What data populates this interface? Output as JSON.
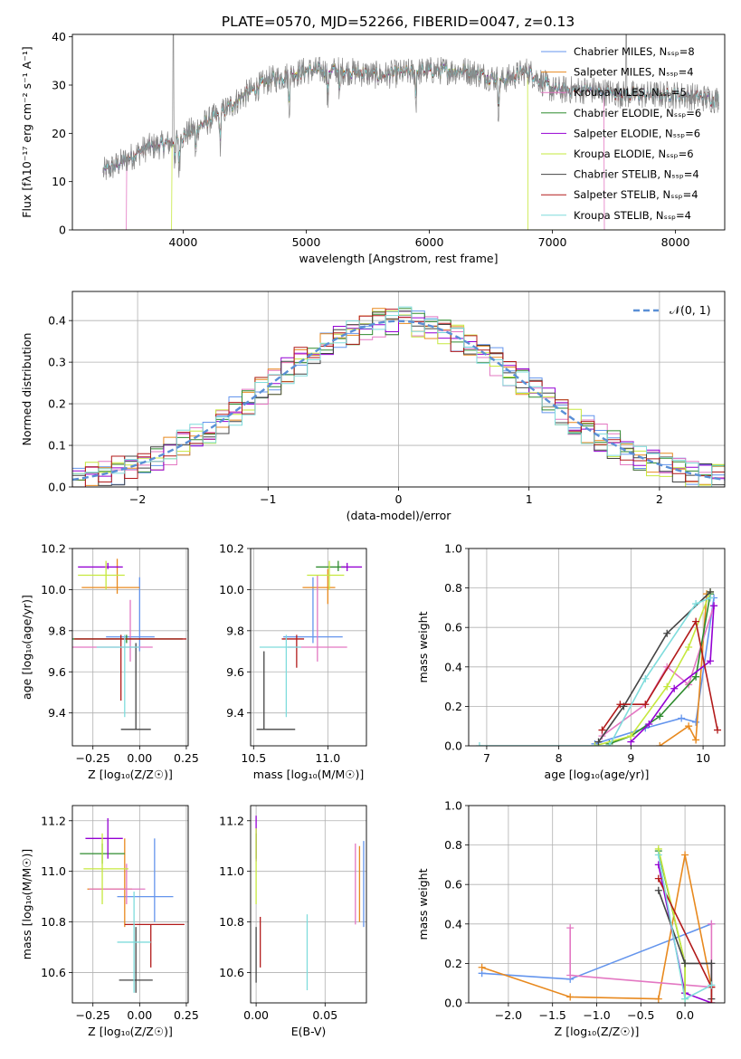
{
  "figure": {
    "title": "PLATE=0570, MJD=52266, FIBERID=0047, z=0.13"
  },
  "model_colors": [
    "#6495ed",
    "#e8891e",
    "#e377c2",
    "#2e8b2e",
    "#9400d3",
    "#c6e83e",
    "#444444",
    "#b21a1a",
    "#7fdcdc"
  ],
  "chart_data": [
    {
      "id": "spectrum",
      "type": "line",
      "xlabel": "wavelength [Angstrom, rest frame]",
      "ylabel": "Flux [fλ10⁻¹⁷ erg cm⁻² s⁻¹ A⁻¹]",
      "xlim": [
        3100,
        8400
      ],
      "ylim": [
        0,
        40.5
      ],
      "xticks": [
        4000,
        5000,
        6000,
        7000,
        8000
      ],
      "yticks": [
        0,
        10,
        20,
        30,
        40
      ],
      "legend_position": "top-right",
      "legend": [
        "Chabrier MILES, N_SSP=8",
        "Salpeter MILES, N_SSP=4",
        "Kroupa MILES, N_SSP=5",
        "Chabrier ELODIE, N_SSP=6",
        "Salpeter ELODIE, N_SSP=6",
        "Kroupa ELODIE, N_SSP=6",
        "Chabrier STELIB, N_SSP=4",
        "Salpeter STELIB, N_SSP=4",
        "Kroupa STELIB, N_SSP=4"
      ],
      "data_spectrum_anchors": {
        "x": [
          3350,
          3500,
          3700,
          3900,
          4100,
          4300,
          4500,
          4700,
          5000,
          5300,
          5600,
          6000,
          6300,
          6600,
          6800,
          7000,
          7300,
          7600,
          8000,
          8350
        ],
        "y": [
          12,
          14,
          17,
          18,
          21,
          24,
          28,
          31,
          33,
          33,
          32,
          33,
          33,
          31,
          33,
          29,
          29,
          28,
          28,
          27
        ]
      },
      "model_cutoffs": {
        "Kroupa MILES": [
          3540,
          7420
        ],
        "Kroupa ELODIE": [
          3910,
          6800
        ]
      }
    },
    {
      "id": "residuals",
      "type": "histogram",
      "xlabel": "(data-model)/error",
      "ylabel": "Normed distribution",
      "xlim": [
        -2.5,
        2.5
      ],
      "ylim": [
        0,
        0.47
      ],
      "xticks": [
        -2,
        -1,
        0,
        1,
        2
      ],
      "yticks": [
        0,
        0.1,
        0.2,
        0.3,
        0.4
      ],
      "bin_width": 0.1,
      "legend_position": "top-right",
      "reference_curve": {
        "name": "𝒩(0, 1)",
        "mean": 0,
        "sigma": 1
      }
    },
    {
      "id": "age_vs_Z",
      "type": "scatter",
      "xlabel": "Z [log₁₀(Z/Z☉)]",
      "ylabel": "age  [log₁₀(age/yr)]",
      "xlim": [
        -0.36,
        0.26
      ],
      "ylim": [
        9.24,
        10.2
      ],
      "xticks": [
        -0.25,
        0.0,
        0.25
      ],
      "yticks": [
        9.4,
        9.6,
        9.8,
        10.0,
        10.2
      ],
      "points": [
        {
          "x": 0.0,
          "y": 9.77,
          "xerr": [
            0.18,
            0.08
          ],
          "yerr": [
            0.07,
            0.29
          ]
        },
        {
          "x": -0.12,
          "y": 10.01,
          "xerr": [
            0.19,
            0.12
          ],
          "yerr": [
            0.03,
            0.14
          ]
        },
        {
          "x": -0.05,
          "y": 9.72,
          "xerr": [
            0.32,
            0.12
          ],
          "yerr": [
            0.07,
            0.23
          ]
        },
        {
          "x": -0.07,
          "y": 9.76,
          "xerr": [
            0.3,
            0.3
          ],
          "yerr": [
            0.02,
            0.02
          ]
        },
        {
          "x": -0.17,
          "y": 10.11,
          "xerr": [
            0.16,
            0.08
          ],
          "yerr": [
            0.01,
            0.02
          ]
        },
        {
          "x": -0.18,
          "y": 10.07,
          "xerr": [
            0.15,
            0.1
          ],
          "yerr": [
            0.07,
            0.07
          ]
        },
        {
          "x": -0.02,
          "y": 9.32,
          "xerr": [
            0.08,
            0.08
          ],
          "yerr": [
            0.0,
            0.42
          ]
        },
        {
          "x": -0.1,
          "y": 9.76,
          "xerr": [
            0.25,
            0.35
          ],
          "yerr": [
            0.3,
            0.02
          ]
        },
        {
          "x": -0.08,
          "y": 9.72,
          "xerr": [
            0.15,
            0.08
          ],
          "yerr": [
            0.34,
            0.06
          ]
        }
      ]
    },
    {
      "id": "age_vs_mass",
      "type": "scatter",
      "xlabel": "mass [log₁₀(M/M☉)]",
      "ylabel": "",
      "xlim": [
        10.48,
        11.26
      ],
      "ylim": [
        9.24,
        10.2
      ],
      "xticks": [
        10.5,
        11.0
      ],
      "yticks": [
        9.4,
        9.6,
        9.8,
        10.0,
        10.2
      ],
      "points": [
        {
          "x": 10.9,
          "y": 9.77,
          "xerr": [
            0.2,
            0.2
          ],
          "yerr": [
            0.03,
            0.29
          ]
        },
        {
          "x": 11.0,
          "y": 10.01,
          "xerr": [
            0.17,
            0.05
          ],
          "yerr": [
            0.08,
            0.09
          ]
        },
        {
          "x": 10.93,
          "y": 9.72,
          "xerr": [
            0.2,
            0.2
          ],
          "yerr": [
            0.07,
            0.35
          ]
        },
        {
          "x": 11.07,
          "y": 10.11,
          "xerr": [
            0.15,
            0.05
          ],
          "yerr": [
            0.02,
            0.03
          ]
        },
        {
          "x": 11.13,
          "y": 10.11,
          "xerr": [
            0.04,
            0.1
          ],
          "yerr": [
            0.02,
            0.02
          ]
        },
        {
          "x": 11.01,
          "y": 10.07,
          "xerr": [
            0.15,
            0.1
          ],
          "yerr": [
            0.07,
            0.07
          ]
        },
        {
          "x": 10.57,
          "y": 9.32,
          "xerr": [
            0.05,
            0.21
          ],
          "yerr": [
            0.0,
            0.38
          ]
        },
        {
          "x": 10.79,
          "y": 9.76,
          "xerr": [
            0.1,
            0.05
          ],
          "yerr": [
            0.14,
            0.02
          ]
        },
        {
          "x": 10.72,
          "y": 9.72,
          "xerr": [
            0.18,
            0.1
          ],
          "yerr": [
            0.34,
            0.06
          ]
        }
      ]
    },
    {
      "id": "weight_vs_age",
      "type": "line",
      "xlabel": "age  [log₁₀(age/yr)]",
      "ylabel": "mass weight",
      "xlim": [
        6.75,
        10.3
      ],
      "ylim": [
        0,
        1.0
      ],
      "xticks": [
        7,
        8,
        9,
        10
      ],
      "yticks": [
        0,
        0.2,
        0.4,
        0.6,
        0.8,
        1.0
      ],
      "series": [
        {
          "x": [
            8.5,
            9.2,
            9.7,
            9.9,
            10.15
          ],
          "y": [
            0.01,
            0.09,
            0.14,
            0.12,
            0.75
          ]
        },
        {
          "x": [
            9.4,
            9.8,
            9.9,
            10.05
          ],
          "y": [
            0.0,
            0.1,
            0.03,
            0.77
          ]
        },
        {
          "x": [
            8.6,
            9.2,
            9.5,
            9.8,
            10.15
          ],
          "y": [
            0.05,
            0.21,
            0.4,
            0.31,
            0.71
          ]
        },
        {
          "x": [
            8.7,
            9.0,
            9.4,
            9.9,
            10.1
          ],
          "y": [
            0.01,
            0.05,
            0.15,
            0.35,
            0.77
          ]
        },
        {
          "x": [
            9.0,
            9.25,
            9.6,
            10.1,
            10.15
          ],
          "y": [
            0.02,
            0.11,
            0.29,
            0.43,
            0.71
          ]
        },
        {
          "x": [
            8.5,
            9.0,
            9.5,
            9.8,
            10.1
          ],
          "y": [
            0.0,
            0.05,
            0.3,
            0.5,
            0.78
          ]
        },
        {
          "x": [
            8.55,
            8.9,
            9.5,
            10.1
          ],
          "y": [
            0.02,
            0.2,
            0.57,
            0.78
          ]
        },
        {
          "x": [
            8.6,
            8.85,
            9.2,
            9.9,
            10.2
          ],
          "y": [
            0.08,
            0.21,
            0.21,
            0.63,
            0.08
          ]
        },
        {
          "x": [
            6.9,
            8.7,
            9.2,
            9.9,
            10.1
          ],
          "y": [
            0.0,
            0.0,
            0.34,
            0.72,
            0.75
          ]
        }
      ]
    },
    {
      "id": "mass_vs_Z",
      "type": "scatter",
      "xlabel": "Z [log₁₀(Z/Z☉)]",
      "ylabel": "mass [log₁₀(M/M☉)]",
      "xlim": [
        -0.36,
        0.26
      ],
      "ylim": [
        10.48,
        11.26
      ],
      "xticks": [
        -0.25,
        0.0,
        0.25
      ],
      "yticks": [
        10.6,
        10.8,
        11.0,
        11.2
      ],
      "points": [
        {
          "x": 0.08,
          "y": 10.9,
          "xerr": [
            0.2,
            0.1
          ],
          "yerr": [
            0.1,
            0.23
          ]
        },
        {
          "x": -0.08,
          "y": 10.93,
          "xerr": [
            0.2,
            0.04
          ],
          "yerr": [
            0.15,
            0.2
          ]
        },
        {
          "x": -0.07,
          "y": 10.93,
          "xerr": [
            0.2,
            0.1
          ],
          "yerr": [
            0.06,
            0.1
          ]
        },
        {
          "x": -0.2,
          "y": 11.07,
          "xerr": [
            0.12,
            0.12
          ],
          "yerr": [
            0.04,
            0.04
          ]
        },
        {
          "x": -0.17,
          "y": 11.13,
          "xerr": [
            0.12,
            0.08
          ],
          "yerr": [
            0.08,
            0.08
          ]
        },
        {
          "x": -0.2,
          "y": 11.01,
          "xerr": [
            0.1,
            0.14
          ],
          "yerr": [
            0.14,
            0.14
          ]
        },
        {
          "x": -0.02,
          "y": 10.57,
          "xerr": [
            0.09,
            0.09
          ],
          "yerr": [
            0.05,
            0.21
          ]
        },
        {
          "x": 0.06,
          "y": 10.79,
          "xerr": [
            0.14,
            0.18
          ],
          "yerr": [
            0.17,
            0.0
          ]
        },
        {
          "x": -0.03,
          "y": 10.72,
          "xerr": [
            0.09,
            0.09
          ],
          "yerr": [
            0.2,
            0.2
          ]
        }
      ]
    },
    {
      "id": "mass_vs_ebv",
      "type": "scatter",
      "xlabel": "E(B-V)",
      "ylabel": "",
      "xlim": [
        -0.004,
        0.08
      ],
      "ylim": [
        10.48,
        11.26
      ],
      "xticks": [
        0.0,
        0.05
      ],
      "yticks": [
        10.6,
        10.8,
        11.0,
        11.2
      ],
      "points": [
        {
          "x": 0.078,
          "y": 10.95,
          "xerr": [
            0,
            0
          ],
          "yerr": [
            0.17,
            0.17
          ]
        },
        {
          "x": 0.075,
          "y": 10.95,
          "xerr": [
            0,
            0
          ],
          "yerr": [
            0.15,
            0.15
          ]
        },
        {
          "x": 0.072,
          "y": 10.95,
          "xerr": [
            0,
            0
          ],
          "yerr": [
            0.16,
            0.16
          ]
        },
        {
          "x": 0.0,
          "y": 11.1,
          "xerr": [
            0,
            0
          ],
          "yerr": [
            0.05,
            0.05
          ]
        },
        {
          "x": 0.0,
          "y": 11.12,
          "xerr": [
            0,
            0
          ],
          "yerr": [
            0.08,
            0.1
          ]
        },
        {
          "x": 0.0,
          "y": 11.02,
          "xerr": [
            0,
            0
          ],
          "yerr": [
            0.15,
            0.15
          ]
        },
        {
          "x": 0.0,
          "y": 10.66,
          "xerr": [
            0,
            0
          ],
          "yerr": [
            0.1,
            0.12
          ]
        },
        {
          "x": 0.003,
          "y": 10.72,
          "xerr": [
            0,
            0
          ],
          "yerr": [
            0.1,
            0.1
          ]
        },
        {
          "x": 0.037,
          "y": 10.68,
          "xerr": [
            0,
            0
          ],
          "yerr": [
            0.15,
            0.15
          ]
        }
      ]
    },
    {
      "id": "weight_vs_Z",
      "type": "line",
      "xlabel": "Z [log₁₀(Z/Z☉)]",
      "ylabel": "mass weight",
      "xlim": [
        -2.45,
        0.45
      ],
      "ylim": [
        0,
        1.0
      ],
      "xticks": [
        -2.0,
        -1.5,
        -1.0,
        -0.5,
        0.0
      ],
      "yticks": [
        0,
        0.2,
        0.4,
        0.6,
        0.8,
        1.0
      ],
      "series": [
        {
          "x": [
            -2.3,
            -1.3,
            0.3
          ],
          "y": [
            0.15,
            0.12,
            0.4
          ]
        },
        {
          "x": [
            -2.3,
            -1.3,
            -0.3,
            0.0,
            0.3
          ],
          "y": [
            0.18,
            0.03,
            0.02,
            0.75,
            0.08
          ]
        },
        {
          "x": [
            -1.3,
            -1.3,
            0.3,
            0.3
          ],
          "y": [
            0.38,
            0.14,
            0.08,
            0.4
          ]
        },
        {
          "x": [
            -0.3,
            0.0,
            0.0
          ],
          "y": [
            0.77,
            0.2,
            0.05
          ]
        },
        {
          "x": [
            -0.3,
            0.0,
            0.3
          ],
          "y": [
            0.7,
            0.05,
            0.0
          ]
        },
        {
          "x": [
            -0.3,
            0.0,
            0.0
          ],
          "y": [
            0.78,
            0.2,
            0.02
          ]
        },
        {
          "x": [
            -0.3,
            0.0,
            0.3,
            0.3
          ],
          "y": [
            0.57,
            0.2,
            0.2,
            0.02
          ]
        },
        {
          "x": [
            -0.3,
            0.3,
            0.3
          ],
          "y": [
            0.63,
            0.08,
            0.0
          ]
        },
        {
          "x": [
            -0.3,
            0.0,
            0.3
          ],
          "y": [
            0.75,
            0.02,
            0.09
          ]
        }
      ]
    }
  ]
}
